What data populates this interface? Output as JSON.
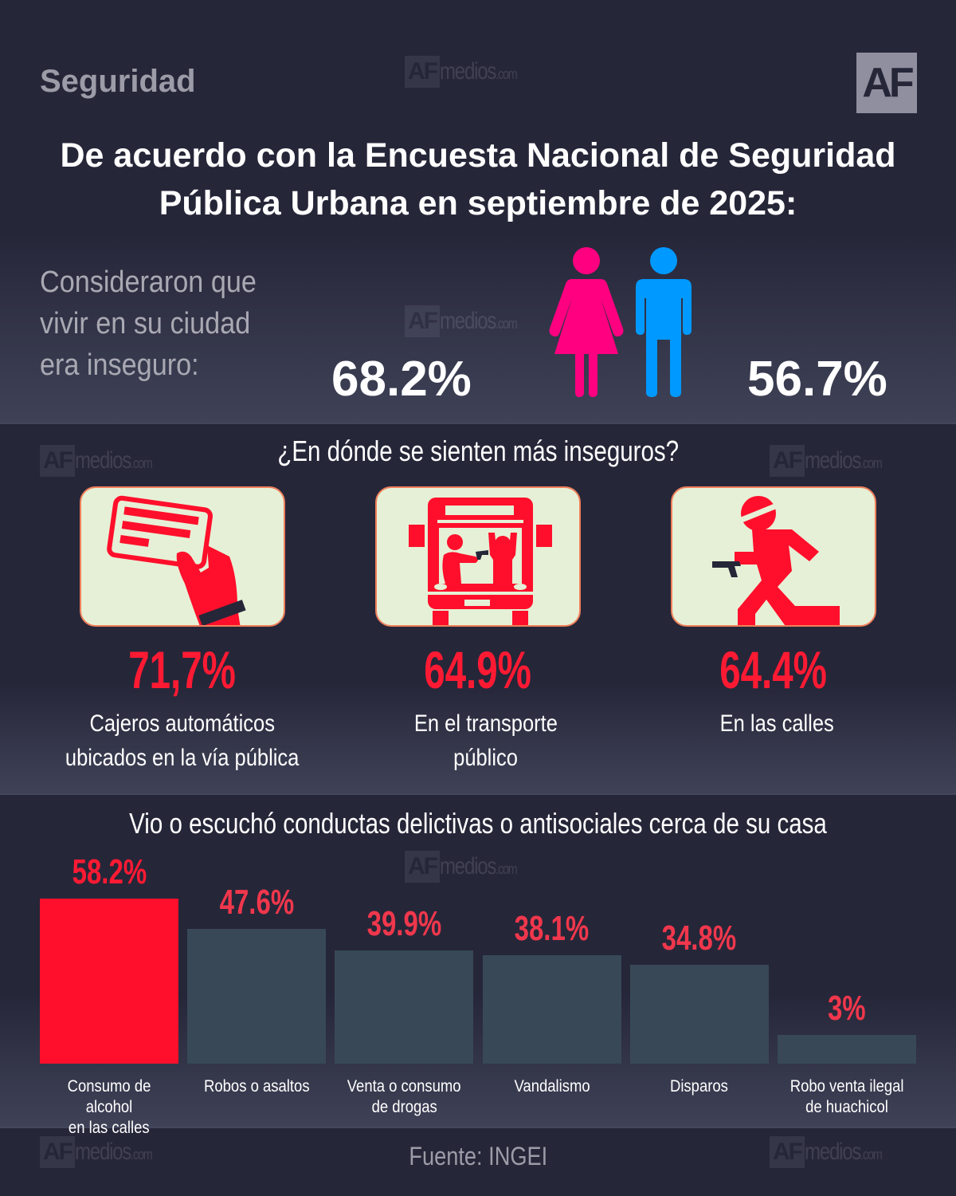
{
  "header": {
    "category": "Seguridad",
    "logo_text": "AF",
    "watermark": {
      "af": "AF",
      "name": "medios",
      "suffix": ".com"
    },
    "headline_line1": "De acuerdo con la Encuesta Nacional de Seguridad",
    "headline_line2": "Pública Urbana en septiembre de 2025:"
  },
  "perception": {
    "lines": [
      "Consideraron que",
      "vivir en su ciudad",
      "era inseguro:"
    ],
    "women_pct": "68.2%",
    "men_pct": "56.7%",
    "women_color": "#ff0080",
    "men_color": "#0099ff",
    "women_icon": "woman-icon",
    "men_icon": "man-icon"
  },
  "places": {
    "title": "¿En dónde se sienten más inseguros?",
    "items": [
      {
        "icon": "card-in-hand-icon",
        "pct": "71,7%",
        "label_lines": [
          "Cajeros automáticos",
          "ubicados en la vía pública"
        ]
      },
      {
        "icon": "bus-robbery-icon",
        "pct": "64.9%",
        "label_lines": [
          "En el transporte",
          "público"
        ]
      },
      {
        "icon": "armed-runner-icon",
        "pct": "64.4%",
        "label_lines": [
          "En las calles"
        ]
      }
    ],
    "accent_color": "#ff1a33",
    "card_color": "#e6f0d6"
  },
  "chart_data": {
    "type": "bar",
    "title": "Vio o escuchó conductas delictivas o antisociales cerca de su casa",
    "categories": [
      "Consumo de alcohol en las calles",
      "Robos o asaltos",
      "Venta o consumo de drogas",
      "Vandalismo",
      "Disparos",
      "Robo venta ilegal de huachicol"
    ],
    "category_lines": [
      [
        "Consumo de alcohol",
        "en las calles"
      ],
      [
        "Robos o asaltos"
      ],
      [
        "Venta o consumo",
        "de drogas"
      ],
      [
        "Vandalismo"
      ],
      [
        "Disparos"
      ],
      [
        "Robo venta ilegal",
        "de huachicol"
      ]
    ],
    "values": [
      58.2,
      47.6,
      39.9,
      38.1,
      34.8,
      3
    ],
    "value_labels": [
      "58.2%",
      "47.6%",
      "39.9%",
      "38.1%",
      "34.8%",
      "3%"
    ],
    "ylabel": "",
    "xlabel": "",
    "highlight_color": "#ff0f2b",
    "bar_color": "#384857",
    "label_color": "#f0374c",
    "grid": false
  },
  "footer": {
    "source": "Fuente: INGEI"
  }
}
